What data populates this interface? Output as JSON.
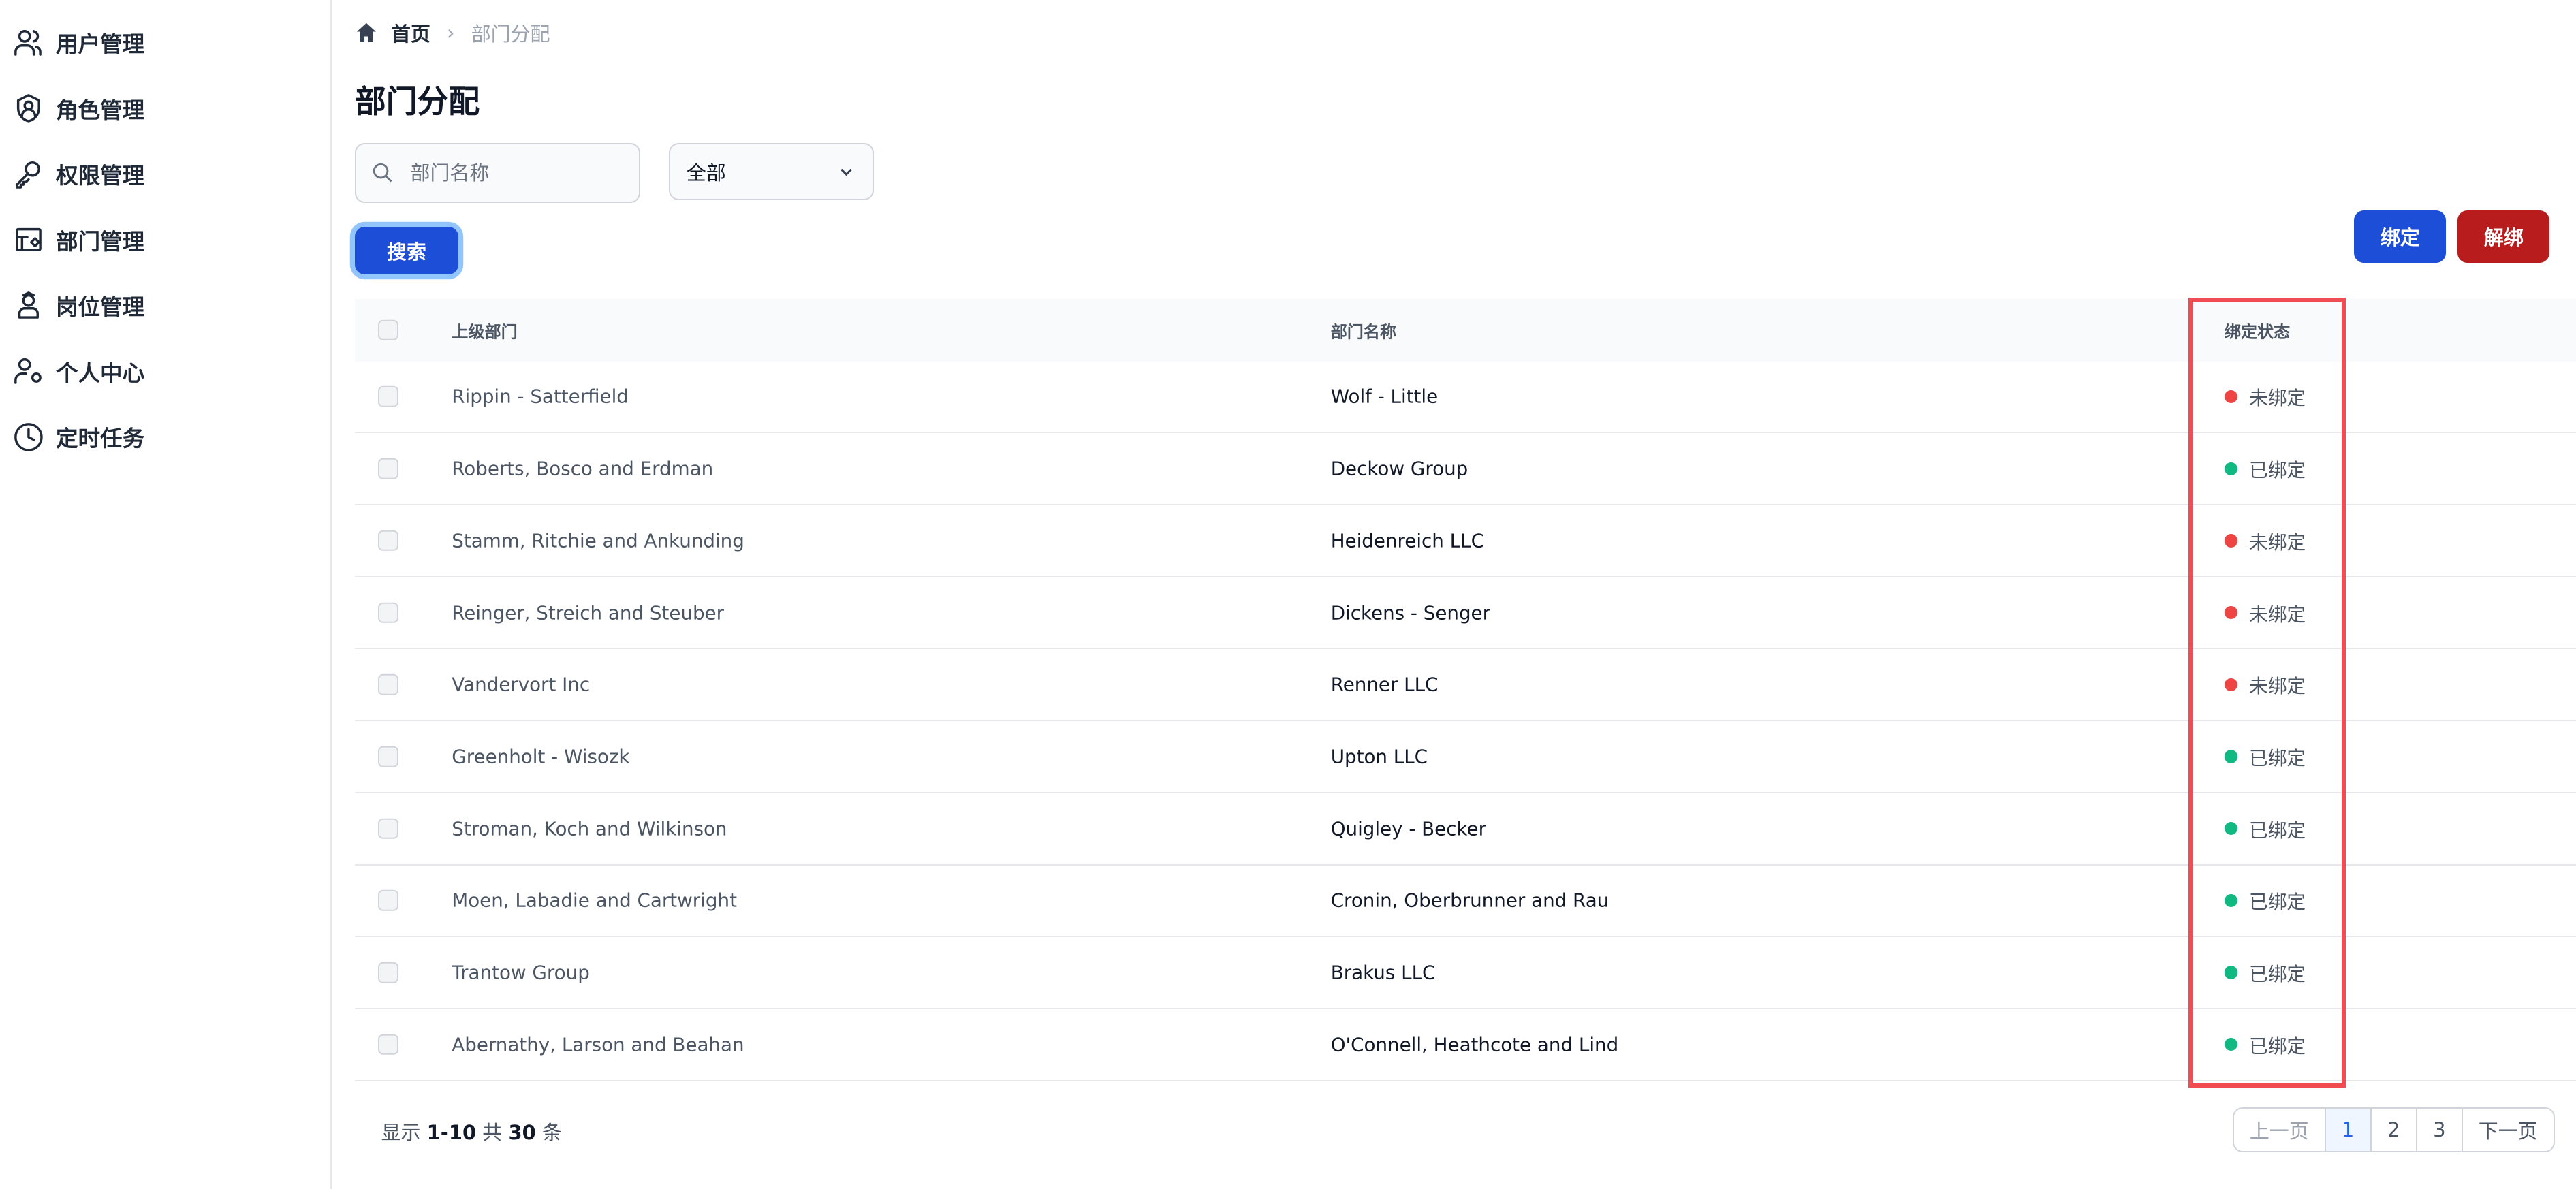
{
  "sidebar": {
    "items": [
      {
        "label": "用户管理",
        "icon": "users-icon"
      },
      {
        "label": "角色管理",
        "icon": "shield-user-icon"
      },
      {
        "label": "权限管理",
        "icon": "key-icon"
      },
      {
        "label": "部门管理",
        "icon": "department-icon"
      },
      {
        "label": "岗位管理",
        "icon": "position-icon"
      },
      {
        "label": "个人中心",
        "icon": "user-settings-icon"
      },
      {
        "label": "定时任务",
        "icon": "clock-icon"
      }
    ]
  },
  "breadcrumb": {
    "home": "首页",
    "current": "部门分配"
  },
  "page_title": "部门分配",
  "filters": {
    "search_placeholder": "部门名称",
    "search_value": "",
    "select_value": "全部",
    "search_button": "搜索"
  },
  "actions": {
    "bind": "绑定",
    "unbind": "解绑"
  },
  "colors": {
    "primary": "#1d4ed8",
    "danger": "#b91c1c",
    "bound": "#10b981",
    "unbound": "#ef4444",
    "highlight": "#ef4c53"
  },
  "table": {
    "headers": [
      "上级部门",
      "部门名称",
      "绑定状态"
    ],
    "rows": [
      {
        "parent": "Rippin - Satterfield",
        "name": "Wolf - Little",
        "status": "未绑定",
        "bound": false
      },
      {
        "parent": "Roberts, Bosco and Erdman",
        "name": "Deckow Group",
        "status": "已绑定",
        "bound": true
      },
      {
        "parent": "Stamm, Ritchie and Ankunding",
        "name": "Heidenreich LLC",
        "status": "未绑定",
        "bound": false
      },
      {
        "parent": "Reinger, Streich and Steuber",
        "name": "Dickens - Senger",
        "status": "未绑定",
        "bound": false
      },
      {
        "parent": "Vandervort Inc",
        "name": "Renner LLC",
        "status": "未绑定",
        "bound": false
      },
      {
        "parent": "Greenholt - Wisozk",
        "name": "Upton LLC",
        "status": "已绑定",
        "bound": true
      },
      {
        "parent": "Stroman, Koch and Wilkinson",
        "name": "Quigley - Becker",
        "status": "已绑定",
        "bound": true
      },
      {
        "parent": "Moen, Labadie and Cartwright",
        "name": "Cronin, Oberbrunner and Rau",
        "status": "已绑定",
        "bound": true
      },
      {
        "parent": "Trantow Group",
        "name": "Brakus LLC",
        "status": "已绑定",
        "bound": true
      },
      {
        "parent": "Abernathy, Larson and Beahan",
        "name": "O'Connell, Heathcote and Lind",
        "status": "已绑定",
        "bound": true
      }
    ]
  },
  "footer": {
    "prefix": "显示",
    "range": "1-10",
    "mid": "共",
    "total": "30",
    "suffix": "条"
  },
  "pagination": {
    "prev": "上一页",
    "pages": [
      "1",
      "2",
      "3"
    ],
    "current": "1",
    "next": "下一页"
  }
}
